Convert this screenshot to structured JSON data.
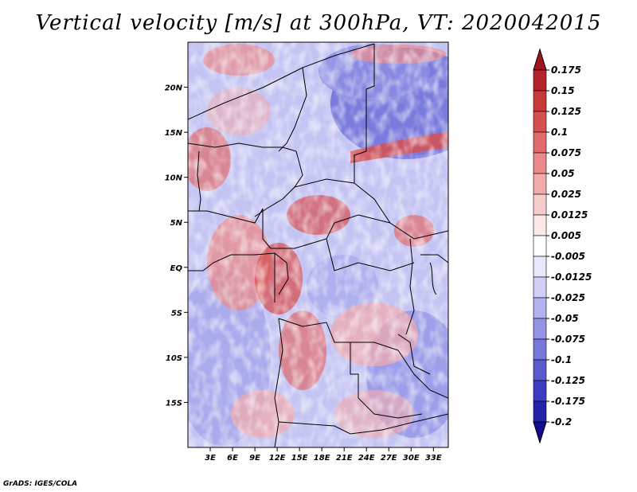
{
  "title": "Vertical velocity [m/s] at 300hPa, VT: 2020042015",
  "credit": "GrADS: IGES/COLA",
  "map": {
    "lon_range": [
      0,
      35
    ],
    "lat_range": [
      -20,
      25
    ],
    "lat_ticks": [
      {
        "value": 20,
        "label": "20N"
      },
      {
        "value": 15,
        "label": "15N"
      },
      {
        "value": 10,
        "label": "10N"
      },
      {
        "value": 5,
        "label": "5N"
      },
      {
        "value": 0,
        "label": "EQ"
      },
      {
        "value": -5,
        "label": "5S"
      },
      {
        "value": -10,
        "label": "10S"
      },
      {
        "value": -15,
        "label": "15S"
      }
    ],
    "lon_ticks": [
      {
        "value": 3,
        "label": "3E"
      },
      {
        "value": 6,
        "label": "6E"
      },
      {
        "value": 9,
        "label": "9E"
      },
      {
        "value": 12,
        "label": "12E"
      },
      {
        "value": 15,
        "label": "15E"
      },
      {
        "value": 18,
        "label": "18E"
      },
      {
        "value": 21,
        "label": "21E"
      },
      {
        "value": 24,
        "label": "24E"
      },
      {
        "value": 27,
        "label": "27E"
      },
      {
        "value": 30,
        "label": "30E"
      },
      {
        "value": 33,
        "label": "33E"
      }
    ]
  },
  "colorbar": {
    "labels": [
      "0.175",
      "0.15",
      "0.125",
      "0.1",
      "0.075",
      "0.05",
      "0.025",
      "0.0125",
      "0.005",
      "-0.005",
      "-0.0125",
      "-0.025",
      "-0.05",
      "-0.075",
      "-0.1",
      "-0.125",
      "-0.175",
      "-0.2"
    ],
    "colors": [
      "#a0141e",
      "#b5232a",
      "#c83a3a",
      "#d75050",
      "#e16b6b",
      "#ea8a8a",
      "#f3aaaa",
      "#f9cccc",
      "#fde8e8",
      "#ffffff",
      "#e8e8fd",
      "#cfcff8",
      "#b2b2f0",
      "#9494e6",
      "#7777dc",
      "#5a5acf",
      "#3c3cc0",
      "#2323a8",
      "#140c90"
    ]
  }
}
